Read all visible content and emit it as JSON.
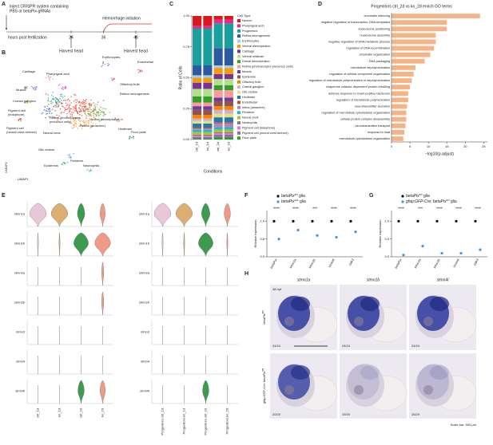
{
  "panel_labels": [
    "A",
    "B",
    "C",
    "D",
    "E",
    "F",
    "G",
    "H"
  ],
  "panel_a": {
    "title_lines": [
      "Inject CRISPR system containing",
      "PBS or betaPix-gRNAs"
    ],
    "event": "Hemorrhage initiation",
    "axis_label": "hours post fertilization",
    "xlim": [
      0,
      48
    ],
    "ticks": [
      24,
      36,
      48
    ],
    "harvest": [
      "Harvest head",
      "Harvest head"
    ]
  },
  "panel_b": {
    "labels": [
      "Erythrocytes",
      "Endothelial",
      "Cartilage",
      "Pharyngeal arch",
      "Olfactory bulb",
      "Muscle",
      "Retina neurogenesis",
      "Cranial ganglion",
      "Pigment cell",
      "(iridophore)",
      "Retina (photoreceptor",
      "precursor cells)",
      "Ventral diencephalon",
      "Retina (amacrine)",
      "Pigment cell",
      "(neural crest derived)",
      "Neural crest",
      "Hindbrain",
      "Floor plate",
      "Otic vesicle",
      "Periderm",
      "Epidermis",
      "Neutrophils"
    ],
    "xlabel": "UMAP1",
    "ylabel": "UMAP2"
  },
  "chart_data": [
    {
      "type": "stacked_bar",
      "ylabel": "Ratio of Cells",
      "xlabel": "Conditions",
      "legend_title": "Cell Type",
      "categories": [
        "ctrl_1d",
        "ko_1d",
        "ctrl_2d",
        "ko_2d"
      ],
      "ylim": [
        0,
        1
      ],
      "yticks": [
        {
          "value": 0,
          "label": "0.00"
        },
        0.25,
        {
          "value": 0.5,
          "label": "0.50"
        },
        0.75,
        {
          "value": 1,
          "label": "1.00"
        }
      ],
      "series": [
        {
          "name": "Neuron",
          "color": "#d7191c",
          "values": [
            0.08,
            0.08,
            0.03,
            0.03
          ]
        },
        {
          "name": "Pharyngeal arch",
          "color": "#e7298a",
          "values": [
            0.02,
            0.02,
            0.03,
            0.03
          ]
        },
        {
          "name": "Progenitors",
          "color": "#1b9e9e",
          "values": [
            0.3,
            0.3,
            0.2,
            0.2
          ]
        },
        {
          "name": "Retina neurogenesis",
          "color": "#2c5aa0",
          "values": [
            0.08,
            0.08,
            0.14,
            0.14
          ]
        },
        {
          "name": "Erythrocytes",
          "color": "#a6cee3",
          "values": [
            0.02,
            0.02,
            0.02,
            0.02
          ]
        },
        {
          "name": "Ventral diencephalon",
          "color": "#f39c12",
          "values": [
            0.04,
            0.04,
            0.05,
            0.05
          ]
        },
        {
          "name": "Cartilage",
          "color": "#7b3294",
          "values": [
            0.05,
            0.05,
            0.04,
            0.04
          ]
        },
        {
          "name": "Ventral midbrain",
          "color": "#b2df8a",
          "values": [
            0.06,
            0.06,
            0.05,
            0.05
          ]
        },
        {
          "name": "Dorsal diencephalon",
          "color": "#33a02c",
          "values": [
            0.05,
            0.05,
            0.04,
            0.04
          ]
        },
        {
          "name": "Retina (photoreceptor precursor cells)",
          "color": "#fb9a99",
          "values": [
            0.03,
            0.03,
            0.06,
            0.06
          ]
        },
        {
          "name": "Muscle",
          "color": "#6a3d9a",
          "values": [
            0.03,
            0.03,
            0.03,
            0.03
          ]
        },
        {
          "name": "Epidermis",
          "color": "#8c564b",
          "values": [
            0.04,
            0.04,
            0.04,
            0.04
          ]
        },
        {
          "name": "Olfactory bulb",
          "color": "#ff7f00",
          "values": [
            0.03,
            0.03,
            0.03,
            0.03
          ]
        },
        {
          "name": "Cranial ganglion",
          "color": "#cab2d6",
          "values": [
            0.02,
            0.02,
            0.03,
            0.03
          ]
        },
        {
          "name": "Otic vesicle",
          "color": "#e8e070",
          "values": [
            0.02,
            0.02,
            0.03,
            0.03
          ]
        },
        {
          "name": "Hindbrain",
          "color": "#1f78b4",
          "values": [
            0.03,
            0.03,
            0.04,
            0.04
          ]
        },
        {
          "name": "Endothelial",
          "color": "#b15928",
          "values": [
            0.01,
            0.01,
            0.01,
            0.01
          ]
        },
        {
          "name": "retina (amacrine)",
          "color": "#bc80bd",
          "values": [
            0.01,
            0.01,
            0.03,
            0.03
          ]
        },
        {
          "name": "Periderm",
          "color": "#17becf",
          "values": [
            0.02,
            0.02,
            0.02,
            0.02
          ]
        },
        {
          "name": "Neural crest",
          "color": "#bcbd22",
          "values": [
            0.02,
            0.02,
            0.02,
            0.02
          ]
        },
        {
          "name": "Neutrophils",
          "color": "#7f7f7f",
          "values": [
            0.01,
            0.01,
            0.01,
            0.01
          ]
        },
        {
          "name": "Pigment cell (iridophore)",
          "color": "#e377c2",
          "values": [
            0.01,
            0.01,
            0.01,
            0.01
          ]
        },
        {
          "name": "Pigment cell (neural crest derived)",
          "color": "#9467bd",
          "values": [
            0.01,
            0.01,
            0.02,
            0.02
          ]
        },
        {
          "name": "Floor plate",
          "color": "#2ca02c",
          "values": [
            0.01,
            0.01,
            0.02,
            0.02
          ]
        }
      ]
    },
    {
      "type": "barh",
      "title": "Progenitors ctrl_2d vs ko_2d enrich GO terms",
      "xlabel": "−log10(p.adjust)",
      "categories": [
        "chromatin silencing",
        "negative regulation of transcription, DNA-templated",
        "nucleosome positioning",
        "nucleosome assembly",
        "negative regulation of DNA metabolic process",
        "regulation of DNA recombination",
        "chromatin organization",
        "DNA packaging",
        "microtubule depolymerization",
        "regulation of cellular component organization",
        "regulation of microtubule polymerization or depolymerization",
        "chaperone cofactor-dependent protein refolding",
        "defense response to Gram-positive bacterium",
        "regulation of microtubule polymerization",
        "neurotransmitter secretion",
        "regulation of microtubule cytoskeleton organization",
        "cellular protein complex disassembly",
        "neurotransmitter transport",
        "response to heat",
        "microtubule cytoskeleton organization"
      ],
      "values": [
        24,
        15,
        15,
        12,
        12,
        11.5,
        10.5,
        9,
        6.5,
        6,
        5.5,
        5,
        4.5,
        4.5,
        4.2,
        4,
        4,
        3.8,
        3.5,
        3.2
      ],
      "color": "#f4b487",
      "xlim": [
        0,
        26
      ],
      "xticks": [
        0,
        5,
        10,
        15,
        20,
        25
      ]
    },
    {
      "type": "dot",
      "ylabel": "Relative expression",
      "categories": [
        "betaPix",
        "stmn1a",
        "stmn1b",
        "stmn4l",
        "pak3"
      ],
      "ylim": [
        0,
        1.3
      ],
      "yticks": [
        {
          "value": 0,
          "label": "0.0"
        },
        0.5,
        {
          "value": 1,
          "label": "1.0"
        }
      ],
      "significance": [
        "****",
        "****",
        "***",
        "****",
        "****"
      ],
      "series": [
        {
          "name": "betaPix",
          "name_sup": "fl/fl",
          "name_suffix": "glia",
          "color": "#111111",
          "values": [
            1,
            1,
            1,
            1,
            1
          ]
        },
        {
          "name": "betaPix",
          "name_sup": "Δ/Δ",
          "name_suffix": "glia",
          "color": "#4a90d9",
          "values": [
            0.5,
            0.75,
            0.6,
            0.55,
            0.7
          ]
        }
      ]
    },
    {
      "type": "dot",
      "ylabel": "Relative expression",
      "categories": [
        "betaPix",
        "stmn1a",
        "stmn1b",
        "stmn4l",
        "pak3"
      ],
      "ylim": [
        0,
        1.3
      ],
      "yticks": [
        {
          "value": 0,
          "label": "0.0"
        },
        0.5,
        {
          "value": 1,
          "label": "1.0"
        }
      ],
      "significance": [
        "****",
        "***",
        "****",
        "****",
        "****"
      ],
      "series": [
        {
          "name": "betaPix",
          "name_sup": "fl/fl",
          "name_suffix": "glia",
          "color": "#111111",
          "values": [
            1,
            1,
            1,
            1,
            1
          ]
        },
        {
          "name": "gfap:GFP-Cre; betaPix",
          "name_sup": "fl/fl",
          "name_suffix": "glia",
          "color": "#4a90d9",
          "values": [
            0.05,
            0.3,
            0.1,
            0.1,
            0.2
          ]
        }
      ]
    }
  ],
  "panel_e": {
    "genes": [
      "stmn1a",
      "stmn1b",
      "stmn2a",
      "stmn2b",
      "stmn3",
      "stmn4",
      "stmn4l"
    ],
    "colors": [
      "#e8c8d8",
      "#dcae74",
      "#3d9b4f",
      "#ee9a86"
    ],
    "panels": [
      {
        "conditions": [
          "ctrl_1d",
          "ko_1d",
          "ctrl_2d",
          "ko_2d"
        ],
        "widths": [
          [
            0.8,
            0.8,
            0.35,
            0.25
          ],
          [
            0.05,
            0.05,
            0.7,
            0.75
          ],
          [
            0,
            0,
            0,
            0.1
          ],
          [
            0,
            0,
            0,
            0.1
          ],
          [
            0,
            0,
            0,
            0
          ],
          [
            0,
            0,
            0,
            0
          ],
          [
            0,
            0,
            0.3,
            0.25
          ]
        ]
      },
      {
        "conditions": [
          "Progenitors.ctrl_1d",
          "Progenitors.ko_1d",
          "Progenitors.ctrl_2d",
          "Progenitors.ko_2d"
        ],
        "widths": [
          [
            0.8,
            0.8,
            0.4,
            0.3
          ],
          [
            0.05,
            0.05,
            0.7,
            0.05
          ],
          [
            0,
            0,
            0,
            0
          ],
          [
            0,
            0,
            0,
            0
          ],
          [
            0,
            0,
            0,
            0
          ],
          [
            0,
            0,
            0,
            0
          ],
          [
            0,
            0,
            0.3,
            0
          ]
        ]
      }
    ]
  },
  "panel_h": {
    "genes": [
      "stmn1a",
      "stmn1b",
      "stmn4l"
    ],
    "stage": "48 hpf",
    "scale_bar": "Scale bar: 500 µm",
    "rows": [
      {
        "label_parts": [
          "betaPix",
          "fl/fl"
        ],
        "counts": [
          "24/24",
          "24/24",
          "24/24"
        ]
      },
      {
        "label_parts": [
          "gfap:GFP-Cre; betaPix",
          "fl/fl"
        ],
        "counts": [
          "20/20",
          "19/20",
          "25/29"
        ]
      }
    ]
  }
}
